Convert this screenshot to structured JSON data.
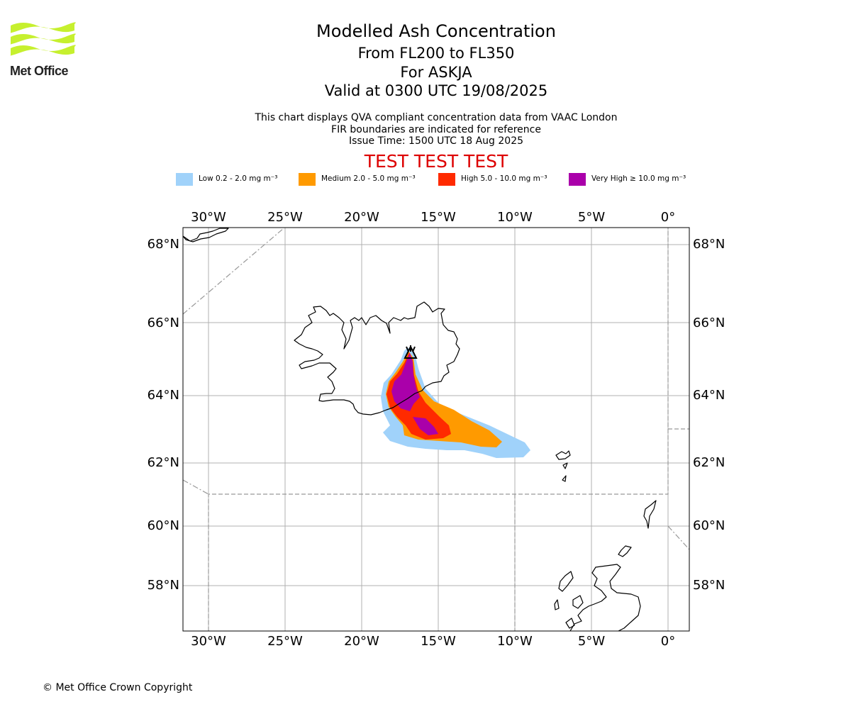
{
  "branding": {
    "logo_text": "Met Office"
  },
  "header": {
    "title": "Modelled Ash Concentration",
    "flight_levels": "From FL200 to FL350",
    "volcano": "For ASKJA",
    "valid_time": "Valid at 0300 UTC 19/08/2025"
  },
  "notes": {
    "line1": "This chart displays QVA compliant concentration data from VAAC London",
    "line2": "FIR boundaries are indicated for reference",
    "line3": "Issue Time: 1500 UTC 18 Aug 2025"
  },
  "test_banner": "TEST TEST TEST",
  "legend": [
    {
      "label": "Low 0.2 - 2.0 mg m⁻³",
      "color": "#a0d2fa"
    },
    {
      "label": "Medium 2.0 - 5.0 mg m⁻³",
      "color": "#ff9a00"
    },
    {
      "label": "High 5.0 - 10.0 mg m⁻³",
      "color": "#ff2a00"
    },
    {
      "label": "Very High ≥ 10.0 mg m⁻³",
      "color": "#aa00aa"
    }
  ],
  "map": {
    "lon_range": [
      -31.6,
      1.4
    ],
    "lat_range": [
      56.6,
      68.45
    ],
    "lon_ticks": [
      "30°W",
      "25°W",
      "20°W",
      "15°W",
      "10°W",
      "5°W",
      "0°"
    ],
    "lat_ticks": [
      "68°N",
      "66°N",
      "64°N",
      "62°N",
      "60°N",
      "58°N"
    ],
    "colors": {
      "grid": "#b0b0b0",
      "coast": "#000000",
      "fir_boundary": "#999999"
    },
    "volcano_marker": "volcano-icon"
  },
  "footer": {
    "copyright": "© Met Office Crown Copyright"
  }
}
